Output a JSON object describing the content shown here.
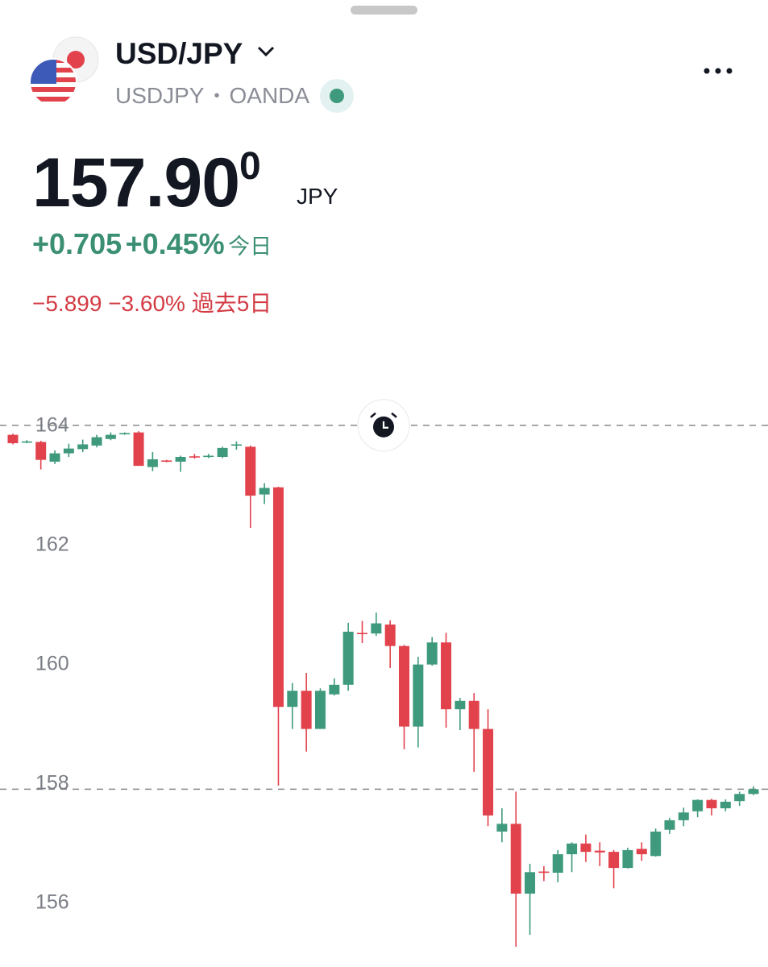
{
  "header": {
    "symbol": "USD/JPY",
    "ticker": "USDJPY",
    "separator": "•",
    "exchange": "OANDA"
  },
  "quote": {
    "price": "157.90",
    "price_sup": "0",
    "currency": "JPY",
    "day_change": "+0.705",
    "day_change_pct": "+0.45%",
    "day_label": "今日",
    "week_change": "−5.899",
    "week_change_pct": "−3.60%",
    "week_label": "過去5日"
  },
  "chart_data": {
    "type": "candlestick",
    "open": [
      163.84,
      163.72,
      163.72,
      163.39,
      163.53,
      163.6,
      163.66,
      163.77,
      163.85,
      163.88,
      163.3,
      163.41,
      163.39,
      163.48,
      163.47,
      163.47,
      163.66,
      163.64,
      162.84,
      162.96,
      159.28,
      159.55,
      158.91,
      159.49,
      159.65,
      160.52,
      160.51,
      160.66,
      160.3,
      158.95,
      159.99,
      160.36,
      159.24,
      159.38,
      158.91,
      157.19,
      157.32,
      156.15,
      156.52,
      156.5,
      156.81,
      156.99,
      156.87,
      156.85,
      156.58,
      156.9,
      156.78,
      157.22,
      157.38,
      157.53,
      157.72,
      157.58,
      157.7,
      157.82
    ],
    "high": [
      163.86,
      163.75,
      163.74,
      163.58,
      163.69,
      163.76,
      163.84,
      163.88,
      163.88,
      163.9,
      163.55,
      163.42,
      163.49,
      163.52,
      163.52,
      163.64,
      163.73,
      163.66,
      163.03,
      162.97,
      159.68,
      159.85,
      159.59,
      159.76,
      160.69,
      160.72,
      160.86,
      160.73,
      160.32,
      160.12,
      160.45,
      160.52,
      159.43,
      159.51,
      159.24,
      157.58,
      157.86,
      156.65,
      156.61,
      156.88,
      157.01,
      157.14,
      157.01,
      156.88,
      156.92,
      157.01,
      157.24,
      157.42,
      157.59,
      157.73,
      157.74,
      157.73,
      157.86,
      157.95
    ],
    "low": [
      163.68,
      163.7,
      163.26,
      163.35,
      163.47,
      163.55,
      163.63,
      163.75,
      163.84,
      163.32,
      163.23,
      163.38,
      163.22,
      163.44,
      163.45,
      163.45,
      163.59,
      162.28,
      162.68,
      157.96,
      158.91,
      158.53,
      158.91,
      159.47,
      159.55,
      160.35,
      160.47,
      159.93,
      158.57,
      158.6,
      159.97,
      158.93,
      158.89,
      158.19,
      157.28,
      157.01,
      155.26,
      155.46,
      156.36,
      156.34,
      156.51,
      156.68,
      156.61,
      156.24,
      156.57,
      156.7,
      156.77,
      157.15,
      157.28,
      157.43,
      157.46,
      157.53,
      157.62,
      157.8
    ],
    "close": [
      163.7,
      163.73,
      163.42,
      163.53,
      163.61,
      163.68,
      163.8,
      163.84,
      163.87,
      163.32,
      163.43,
      163.39,
      163.47,
      163.46,
      163.49,
      163.62,
      163.68,
      162.82,
      162.95,
      159.28,
      159.55,
      158.91,
      159.55,
      159.65,
      160.54,
      160.5,
      160.68,
      160.3,
      158.95,
      159.99,
      160.36,
      159.24,
      159.38,
      158.91,
      157.46,
      157.32,
      156.15,
      156.51,
      156.5,
      156.81,
      156.99,
      156.85,
      156.84,
      156.58,
      156.88,
      156.81,
      157.19,
      157.38,
      157.51,
      157.72,
      157.58,
      157.69,
      157.82,
      157.9
    ],
    "up_color": "#3f9a7d",
    "down_color": "#e2424c",
    "ylim": [
      154.92,
      164.78
    ],
    "yticks": [
      156,
      158,
      160,
      162,
      164
    ],
    "grid": false,
    "alert_level": 164,
    "last_price": 157.9
  }
}
